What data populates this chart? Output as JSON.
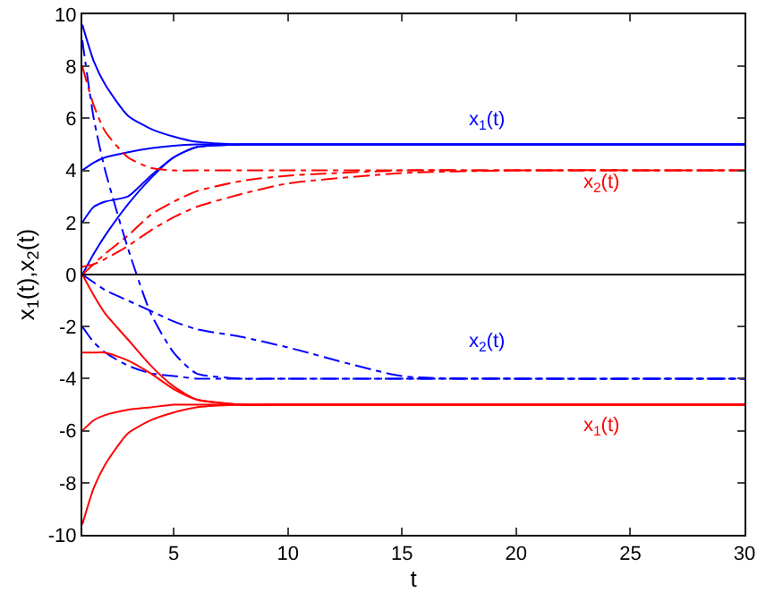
{
  "chart_data": {
    "type": "line",
    "xlabel": "t",
    "ylabel": "x$_{1}$(t),x$_{2}$(t)",
    "x": [
      1,
      1.5,
      2,
      3,
      4,
      5,
      6,
      8,
      10,
      15,
      20,
      30
    ],
    "xlim": [
      1,
      30
    ],
    "xticks": [
      5,
      10,
      15,
      20,
      25,
      30
    ],
    "ylim": [
      -10,
      10
    ],
    "yticks": [
      -10,
      -8,
      -6,
      -4,
      -2,
      0,
      2,
      4,
      6,
      8,
      10
    ],
    "grid": false,
    "marker": "none",
    "series": [
      {
        "color": "#0000ff",
        "line_style": "solid",
        "values": [
          9.6,
          8.2,
          7.3,
          6.1,
          5.6,
          5.3,
          5.1,
          5,
          5,
          5,
          5,
          5
        ]
      },
      {
        "color": "#0000ff",
        "line_style": "solid",
        "values": [
          4,
          4.3,
          4.5,
          4.7,
          4.85,
          4.95,
          5,
          5,
          5,
          5,
          5,
          5
        ]
      },
      {
        "color": "#0000ff",
        "line_style": "solid",
        "values": [
          2,
          2.6,
          2.8,
          3,
          3.8,
          4.5,
          4.9,
          5,
          5,
          5,
          5,
          5
        ]
      },
      {
        "color": "#0000ff",
        "line_style": "solid",
        "values": [
          0,
          0.8,
          1.5,
          2.7,
          3.7,
          4.5,
          4.9,
          5,
          5,
          5,
          5,
          5
        ]
      },
      {
        "color": "#ff0000",
        "line_style": "dashed",
        "values": [
          8,
          6.5,
          5.5,
          4.5,
          4.1,
          4,
          4,
          4,
          4,
          4,
          4,
          4
        ]
      },
      {
        "color": "#ff0000",
        "line_style": "dashed",
        "values": [
          0,
          0.4,
          0.8,
          1.5,
          2.3,
          2.8,
          3.2,
          3.6,
          3.8,
          4,
          4,
          4
        ]
      },
      {
        "color": "#ff0000",
        "line_style": "dashed",
        "values": [
          0.3,
          0.4,
          0.6,
          1.1,
          1.7,
          2.2,
          2.6,
          3.1,
          3.5,
          3.9,
          4,
          4
        ]
      },
      {
        "color": "#0000ff",
        "line_style": "dashed",
        "values": [
          9,
          6,
          4,
          1,
          -1.5,
          -3,
          -3.8,
          -4,
          -4,
          -4,
          -4,
          -4
        ]
      },
      {
        "color": "#0000ff",
        "line_style": "dashed",
        "values": [
          0,
          -0.3,
          -0.6,
          -1,
          -1.4,
          -1.8,
          -2.1,
          -2.4,
          -2.8,
          -3.9,
          -4,
          -4
        ]
      },
      {
        "color": "#0000ff",
        "line_style": "dashed",
        "values": [
          -2,
          -2.6,
          -3,
          -3.5,
          -3.8,
          -3.9,
          -4,
          -4,
          -4,
          -4,
          -4,
          -4
        ]
      },
      {
        "color": "#ff0000",
        "line_style": "solid",
        "values": [
          -9.6,
          -8.2,
          -7.3,
          -6.1,
          -5.6,
          -5.3,
          -5.1,
          -5,
          -5,
          -5,
          -5,
          -5
        ]
      },
      {
        "color": "#ff0000",
        "line_style": "solid",
        "values": [
          -6,
          -5.6,
          -5.4,
          -5.2,
          -5.1,
          -5,
          -5,
          -5,
          -5,
          -5,
          -5,
          -5
        ]
      },
      {
        "color": "#ff0000",
        "line_style": "solid",
        "values": [
          -3,
          -3,
          -3,
          -3.3,
          -3.8,
          -4.4,
          -4.8,
          -5,
          -5,
          -5,
          -5,
          -5
        ]
      },
      {
        "color": "#ff0000",
        "line_style": "solid",
        "values": [
          0,
          -0.8,
          -1.5,
          -2.5,
          -3.5,
          -4.3,
          -4.8,
          -5,
          -5,
          -5,
          -5,
          -5
        ]
      }
    ],
    "ref_lines": [
      {
        "axis": "y",
        "value": 0,
        "color": "#000000",
        "line_style": "solid"
      }
    ],
    "annotations": [
      "x$_{1}$(t)",
      "x$_{2}$(t)",
      "x$_{2}$(t)",
      "x$_{1}$(t)"
    ]
  }
}
